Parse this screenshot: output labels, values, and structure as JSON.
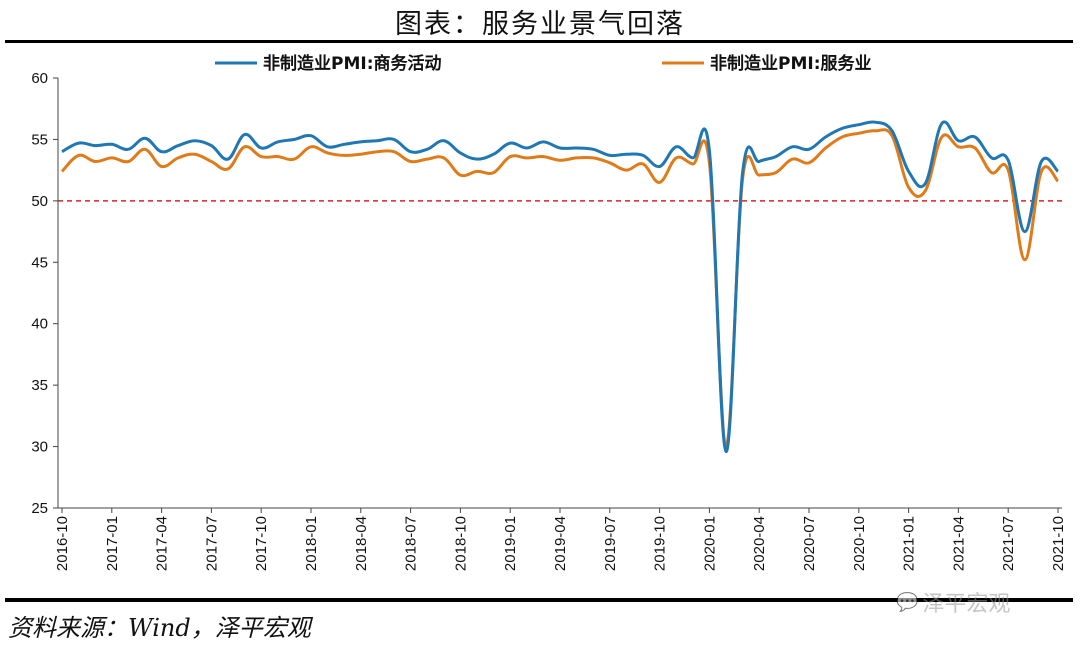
{
  "title": "图表：服务业景气回落",
  "source": "资料来源：Wind，泽平宏观",
  "watermark": "泽平宏观",
  "colors": {
    "series1": "#1f77b4",
    "series2": "#e07b1a",
    "threshold": "#e02020",
    "axis": "#444444"
  },
  "chart_data": {
    "type": "line",
    "title": "图表：服务业景气回落",
    "xlabel": "",
    "ylabel": "",
    "ylim": [
      25,
      60
    ],
    "yticks": [
      25,
      30,
      35,
      40,
      45,
      50,
      55,
      60
    ],
    "xtick_labels": [
      "2016-10",
      "2017-01",
      "2017-04",
      "2017-07",
      "2017-10",
      "2018-01",
      "2018-04",
      "2018-07",
      "2018-10",
      "2019-01",
      "2019-04",
      "2019-07",
      "2019-10",
      "2020-01",
      "2020-04",
      "2020-07",
      "2020-10",
      "2021-01",
      "2021-04",
      "2021-07",
      "2021-10"
    ],
    "reference_line": {
      "value": 50,
      "style": "dashed"
    },
    "x": [
      "2016-10",
      "2016-11",
      "2016-12",
      "2017-01",
      "2017-02",
      "2017-03",
      "2017-04",
      "2017-05",
      "2017-06",
      "2017-07",
      "2017-08",
      "2017-09",
      "2017-10",
      "2017-11",
      "2017-12",
      "2018-01",
      "2018-02",
      "2018-03",
      "2018-04",
      "2018-05",
      "2018-06",
      "2018-07",
      "2018-08",
      "2018-09",
      "2018-10",
      "2018-11",
      "2018-12",
      "2019-01",
      "2019-02",
      "2019-03",
      "2019-04",
      "2019-05",
      "2019-06",
      "2019-07",
      "2019-08",
      "2019-09",
      "2019-10",
      "2019-11",
      "2019-12",
      "2020-01",
      "2020-02",
      "2020-03",
      "2020-04",
      "2020-05",
      "2020-06",
      "2020-07",
      "2020-08",
      "2020-09",
      "2020-10",
      "2020-11",
      "2020-12",
      "2021-01",
      "2021-02",
      "2021-03",
      "2021-04",
      "2021-05",
      "2021-06",
      "2021-07",
      "2021-08",
      "2021-09",
      "2021-10"
    ],
    "series": [
      {
        "name": "非制造业PMI:商务活动",
        "values": [
          54.0,
          54.7,
          54.5,
          54.6,
          54.2,
          55.1,
          54.0,
          54.5,
          54.9,
          54.5,
          53.4,
          55.4,
          54.3,
          54.8,
          55.0,
          55.3,
          54.4,
          54.6,
          54.8,
          54.9,
          55.0,
          54.0,
          54.2,
          54.9,
          53.9,
          53.4,
          53.8,
          54.7,
          54.3,
          54.8,
          54.3,
          54.3,
          54.2,
          53.7,
          53.8,
          53.7,
          52.8,
          54.4,
          53.5,
          54.1,
          29.6,
          52.3,
          53.2,
          53.6,
          54.4,
          54.2,
          55.2,
          55.9,
          56.2,
          56.4,
          55.7,
          52.4,
          51.4,
          56.3,
          54.9,
          55.2,
          53.5,
          53.3,
          47.5,
          53.2,
          52.4
        ]
      },
      {
        "name": "非制造业PMI:服务业",
        "values": [
          52.4,
          53.7,
          53.2,
          53.5,
          53.2,
          54.2,
          52.8,
          53.5,
          53.8,
          53.2,
          52.6,
          54.4,
          53.6,
          53.6,
          53.4,
          54.4,
          53.9,
          53.7,
          53.8,
          54.0,
          54.0,
          53.2,
          53.4,
          53.5,
          52.1,
          52.4,
          52.3,
          53.6,
          53.5,
          53.6,
          53.3,
          53.5,
          53.5,
          53.1,
          52.5,
          53.0,
          51.5,
          53.5,
          53.0,
          53.1,
          30.1,
          51.8,
          52.1,
          52.3,
          53.4,
          53.1,
          54.3,
          55.2,
          55.5,
          55.7,
          55.3,
          51.1,
          50.8,
          55.2,
          54.4,
          54.3,
          52.3,
          52.5,
          45.2,
          52.4,
          51.6
        ]
      }
    ]
  }
}
